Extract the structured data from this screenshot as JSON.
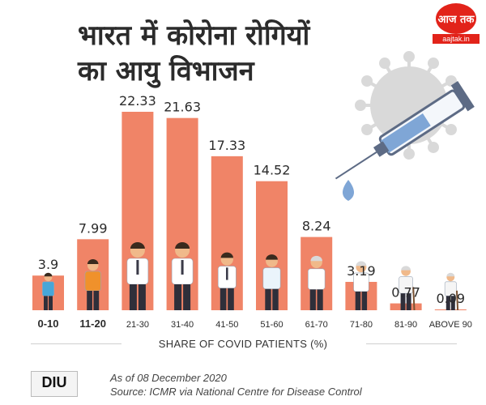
{
  "title_lines": [
    "भारत में कोरोना रोगियों",
    "का आयु विभाजन"
  ],
  "logo": {
    "mark": "आज तक",
    "url": "aajtak.in"
  },
  "brand": "DIU",
  "footer": {
    "as_of": "As of 08 December 2020",
    "source": "Source: ICMR via  National Centre for Disease Control"
  },
  "colors": {
    "bar": "#f08467",
    "title": "#2b2b2b",
    "accent": "#e2231a",
    "virus": "#d9d9d9"
  },
  "chart_data": {
    "type": "bar",
    "xlabel": "SHARE OF COVID PATIENTS (%)",
    "categories": [
      "0-10",
      "11-20",
      "21-30",
      "31-40",
      "41-50",
      "51-60",
      "61-70",
      "71-80",
      "81-90",
      "ABOVE 90"
    ],
    "values": [
      3.9,
      7.99,
      22.33,
      21.63,
      17.33,
      14.52,
      8.24,
      3.19,
      0.77,
      0.09
    ],
    "bold_categories": [
      "0-10",
      "11-20"
    ],
    "ylim": [
      0,
      22.33
    ],
    "grid": false,
    "legend": "none"
  }
}
